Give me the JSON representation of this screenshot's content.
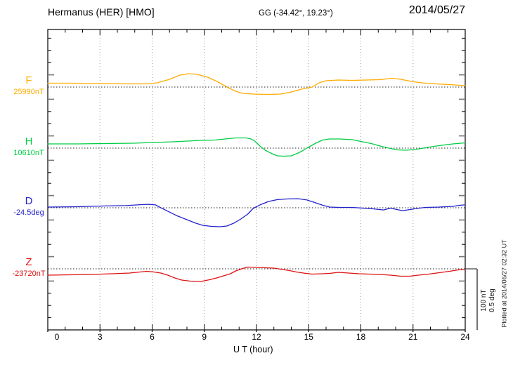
{
  "header": {
    "station_title": "Hermanus (HER)  [HMO]",
    "gg_coords": "GG (-34.42°,  19.23°)",
    "date": "2014/05/27"
  },
  "xaxis": {
    "label": "U T (hour)",
    "tick_labels": [
      "0",
      "3",
      "6",
      "9",
      "12",
      "15",
      "18",
      "21",
      "24"
    ]
  },
  "scalebar": {
    "line1": "100 nT",
    "line2": "0.5 deg"
  },
  "footer_note": "Plotted at 2014/06/27 02:32 UT",
  "colors": {
    "F": "#ffaa00",
    "H": "#00cc44",
    "D": "#2222cc",
    "Z": "#dd1111",
    "frame": "#000000",
    "gridline": "#999999",
    "baseline": "#222222",
    "scalebar": "#444444"
  },
  "chart_data": {
    "type": "line",
    "title": "Hermanus (HER) [HMO] magnetogram for 2014/05/27",
    "xlabel": "U T (hour)",
    "x_range": [
      0,
      24
    ],
    "x_tick_step": 3,
    "grid": "vertical dotted at 3-hour intervals; dotted horizontal baseline per channel",
    "legend_position": "left margin channel labels",
    "scale_bar": {
      "nT_per_division": 100,
      "deg_per_division": 0.5
    },
    "series": [
      {
        "id": "F",
        "label": "F",
        "base_label": "25990nT",
        "base_value": 25990,
        "unit": "nT",
        "color": "#ffaa00",
        "points": [
          [
            0,
            6.5
          ],
          [
            1.3,
            6.5
          ],
          [
            2.9,
            5.9
          ],
          [
            4.5,
            5.3
          ],
          [
            5.7,
            5.3
          ],
          [
            6.3,
            7.1
          ],
          [
            7.0,
            12.9
          ],
          [
            7.6,
            20.0
          ],
          [
            8.1,
            22.4
          ],
          [
            8.6,
            21.2
          ],
          [
            9.2,
            16.5
          ],
          [
            9.8,
            8.2
          ],
          [
            10.3,
            0
          ],
          [
            10.8,
            -7.1
          ],
          [
            11.2,
            -10.6
          ],
          [
            11.8,
            -11.8
          ],
          [
            12.6,
            -12.4
          ],
          [
            13.4,
            -11.8
          ],
          [
            14.0,
            -8.2
          ],
          [
            14.6,
            -3.5
          ],
          [
            15.2,
            0
          ],
          [
            15.6,
            7.1
          ],
          [
            16.0,
            10.6
          ],
          [
            16.7,
            11.8
          ],
          [
            17.5,
            11.2
          ],
          [
            18.3,
            11.8
          ],
          [
            19.1,
            12.4
          ],
          [
            19.8,
            14.7
          ],
          [
            20.3,
            12.9
          ],
          [
            20.9,
            9.4
          ],
          [
            21.5,
            7.1
          ],
          [
            22.3,
            5.3
          ],
          [
            23.1,
            4.1
          ],
          [
            23.7,
            2.9
          ],
          [
            24,
            2.4
          ]
        ]
      },
      {
        "id": "H",
        "label": "H",
        "base_label": "10610nT",
        "base_value": 10610,
        "unit": "nT",
        "color": "#00cc44",
        "points": [
          [
            0,
            7.1
          ],
          [
            1.7,
            7.1
          ],
          [
            3.3,
            7.6
          ],
          [
            4.9,
            8.2
          ],
          [
            6.1,
            9.4
          ],
          [
            7.2,
            10.6
          ],
          [
            8.0,
            11.8
          ],
          [
            8.8,
            12.9
          ],
          [
            9.6,
            13.5
          ],
          [
            10.2,
            15.3
          ],
          [
            10.8,
            17.1
          ],
          [
            11.4,
            17.1
          ],
          [
            11.7,
            15.3
          ],
          [
            11.9,
            11.8
          ],
          [
            12.2,
            3.5
          ],
          [
            12.5,
            -3.5
          ],
          [
            12.9,
            -9.4
          ],
          [
            13.2,
            -12.9
          ],
          [
            13.6,
            -13.5
          ],
          [
            14.0,
            -12.9
          ],
          [
            14.4,
            -8.2
          ],
          [
            14.7,
            -3.5
          ],
          [
            14.9,
            0
          ],
          [
            15.4,
            8.2
          ],
          [
            15.8,
            13.5
          ],
          [
            16.2,
            15.3
          ],
          [
            16.8,
            15.3
          ],
          [
            17.5,
            14.1
          ],
          [
            18.1,
            10.6
          ],
          [
            18.6,
            7.6
          ],
          [
            19.1,
            3.5
          ],
          [
            19.6,
            0
          ],
          [
            20.1,
            -2.9
          ],
          [
            20.6,
            -3.5
          ],
          [
            21.1,
            -2.4
          ],
          [
            21.6,
            0
          ],
          [
            22.2,
            2.9
          ],
          [
            22.8,
            5.3
          ],
          [
            23.3,
            7.1
          ],
          [
            24,
            8.8
          ]
        ]
      },
      {
        "id": "D",
        "label": "D",
        "base_label": "-24.5deg",
        "base_value": -24.5,
        "unit": "deg",
        "color": "#2222cc",
        "points": [
          [
            0,
            0.006
          ],
          [
            1.7,
            0.009
          ],
          [
            3.3,
            0.015
          ],
          [
            4.5,
            0.018
          ],
          [
            5.3,
            0.026
          ],
          [
            5.8,
            0.029
          ],
          [
            6.2,
            0.024
          ],
          [
            6.5,
            0
          ],
          [
            6.9,
            -0.029
          ],
          [
            7.4,
            -0.065
          ],
          [
            8.0,
            -0.1
          ],
          [
            8.5,
            -0.129
          ],
          [
            8.9,
            -0.147
          ],
          [
            9.4,
            -0.156
          ],
          [
            9.9,
            -0.159
          ],
          [
            10.3,
            -0.153
          ],
          [
            10.7,
            -0.129
          ],
          [
            11.1,
            -0.094
          ],
          [
            11.5,
            -0.053
          ],
          [
            11.8,
            -0.006
          ],
          [
            12.2,
            0.024
          ],
          [
            12.7,
            0.053
          ],
          [
            13.2,
            0.068
          ],
          [
            13.8,
            0.074
          ],
          [
            14.4,
            0.076
          ],
          [
            14.9,
            0.065
          ],
          [
            15.4,
            0.041
          ],
          [
            15.8,
            0.021
          ],
          [
            16.2,
            0.006
          ],
          [
            16.8,
            0.003
          ],
          [
            17.5,
            0.003
          ],
          [
            18.1,
            -0.003
          ],
          [
            18.7,
            -0.009
          ],
          [
            19.3,
            -0.018
          ],
          [
            19.7,
            -0.003
          ],
          [
            20.1,
            -0.015
          ],
          [
            20.4,
            -0.024
          ],
          [
            20.8,
            -0.015
          ],
          [
            21.2,
            -0.006
          ],
          [
            21.7,
            0.003
          ],
          [
            22.5,
            0.006
          ],
          [
            23.3,
            0.012
          ],
          [
            23.7,
            0.021
          ],
          [
            24,
            0.024
          ]
        ]
      },
      {
        "id": "Z",
        "label": "Z",
        "base_label": "-23720nT",
        "base_value": -23720,
        "unit": "nT",
        "color": "#dd1111",
        "points": [
          [
            0,
            -10.6
          ],
          [
            1.3,
            -10.0
          ],
          [
            2.5,
            -9.4
          ],
          [
            3.7,
            -8.2
          ],
          [
            4.7,
            -7.1
          ],
          [
            5.3,
            -5.3
          ],
          [
            5.7,
            -4.1
          ],
          [
            6.1,
            -5.3
          ],
          [
            6.5,
            -7.1
          ],
          [
            6.9,
            -10.6
          ],
          [
            7.3,
            -15.3
          ],
          [
            7.7,
            -18.8
          ],
          [
            8.2,
            -20.6
          ],
          [
            8.8,
            -21.2
          ],
          [
            9.3,
            -18.2
          ],
          [
            9.7,
            -15.3
          ],
          [
            10.1,
            -11.8
          ],
          [
            10.5,
            -8.2
          ],
          [
            10.8,
            -3.5
          ],
          [
            11.2,
            0.6
          ],
          [
            11.5,
            2.9
          ],
          [
            12.0,
            2.4
          ],
          [
            12.5,
            1.8
          ],
          [
            13.0,
            1.2
          ],
          [
            13.4,
            -0.6
          ],
          [
            13.9,
            -2.9
          ],
          [
            14.3,
            -5.3
          ],
          [
            14.7,
            -7.1
          ],
          [
            15.2,
            -8.8
          ],
          [
            15.8,
            -8.2
          ],
          [
            16.2,
            -7.6
          ],
          [
            16.7,
            -5.9
          ],
          [
            17.3,
            -7.1
          ],
          [
            17.9,
            -8.2
          ],
          [
            18.5,
            -8.8
          ],
          [
            19.1,
            -9.4
          ],
          [
            19.7,
            -10.6
          ],
          [
            20.3,
            -12.4
          ],
          [
            20.8,
            -12.4
          ],
          [
            21.3,
            -10.6
          ],
          [
            21.9,
            -8.8
          ],
          [
            22.5,
            -6.5
          ],
          [
            23.1,
            -4.1
          ],
          [
            23.6,
            -1.8
          ],
          [
            24,
            -0.6
          ]
        ]
      }
    ]
  }
}
